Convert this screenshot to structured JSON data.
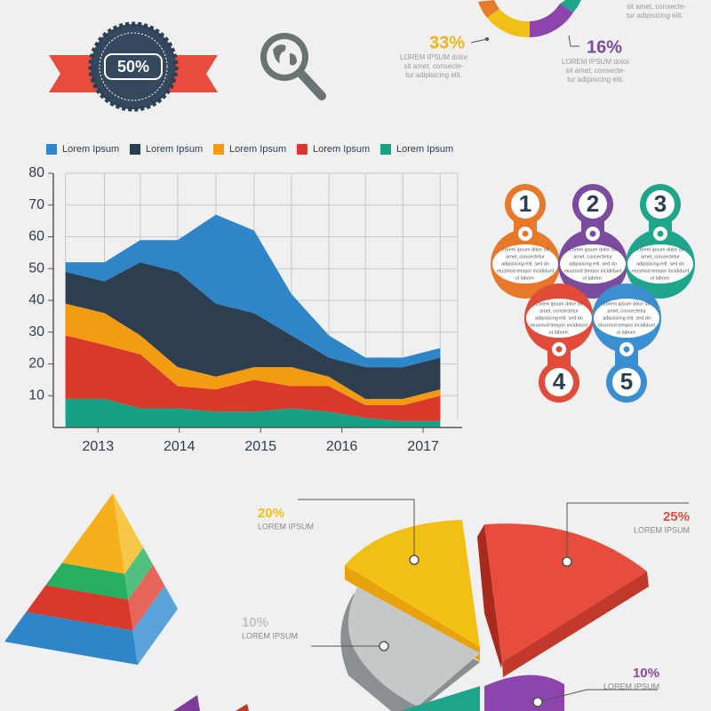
{
  "badge": {
    "label": "50%"
  },
  "donut": {
    "top_right": [
      "sit amet, consecte-",
      "tur adipisicing elit."
    ],
    "callouts": [
      {
        "value": "33%",
        "color": "#f2b41b",
        "lines": [
          "LOREM IPSUM dolor",
          "sit amet, consecte-",
          "tur adipisicing elit."
        ]
      },
      {
        "value": "16%",
        "color": "#7b4b9e",
        "lines": [
          "LOREM IPSUM dolor",
          "sit amet, consecte-",
          "tur adipisicing elit."
        ]
      }
    ]
  },
  "chart_data": {
    "type": "stacked-area",
    "x": [
      2012.6,
      2013.08,
      2013.52,
      2013.98,
      2014.45,
      2014.92,
      2015.38,
      2015.84,
      2016.29,
      2016.75,
      2017.21
    ],
    "xlim": [
      2012.45,
      2017.48
    ],
    "xticks": [
      2013,
      2014,
      2015,
      2016,
      2017
    ],
    "ylim": [
      0,
      80
    ],
    "yticks": [
      10,
      20,
      30,
      40,
      50,
      60,
      70,
      80
    ],
    "grid": true,
    "series": [
      {
        "name": "Lorem Ipsum",
        "color": "#2e86c9",
        "values": [
          3,
          6,
          7,
          10,
          28,
          26,
          13,
          7,
          3,
          3,
          3
        ]
      },
      {
        "name": "Lorem Ipsum",
        "color": "#2c3e50",
        "values": [
          10,
          10,
          23,
          30,
          23,
          17,
          10,
          6,
          10,
          10,
          10
        ]
      },
      {
        "name": "Lorem Ipsum",
        "color": "#f39c12",
        "values": [
          10,
          10,
          6,
          6,
          4,
          4,
          6,
          3,
          2,
          2,
          2
        ]
      },
      {
        "name": "Lorem Ipsum",
        "color": "#d8392b",
        "values": [
          20,
          17,
          17,
          7,
          7,
          10,
          7,
          8,
          4,
          5,
          8
        ]
      },
      {
        "name": "Lorem Ipsum",
        "color": "#16a085",
        "values": [
          9,
          9,
          6,
          6,
          5,
          5,
          6,
          5,
          3,
          2,
          2
        ]
      }
    ]
  },
  "steps": [
    {
      "number": "1",
      "color": "#e8792a",
      "lines": [
        "Lorem ipsum dolor sit",
        "amet, consectetur",
        "adipisicing elit. sed do",
        "eiusmod tempor incididunt",
        "ut labore."
      ]
    },
    {
      "number": "2",
      "color": "#7b4b9e",
      "lines": [
        "Lorem ipsum dolor sit",
        "amet, consectetur",
        "adipisicing elit. sed do",
        "eiusmod tempor incididunt",
        "ut labore."
      ]
    },
    {
      "number": "3",
      "color": "#1fa58b",
      "lines": [
        "Lorem ipsum dolor sit",
        "amet, consectetur",
        "adipisicing elit. sed do",
        "eiusmod tempor incididunt",
        "ut labore."
      ]
    },
    {
      "number": "4",
      "color": "#e04b3a",
      "lines": [
        "Lorem ipsum dolor sit",
        "amet, consectetur",
        "adipisicing elit. sed do",
        "eiusmod tempor incididunt",
        "ut labore."
      ]
    },
    {
      "number": "5",
      "color": "#3b8fd0",
      "lines": [
        "Lorem ipsum dolor sit",
        "amet, consectetur",
        "adipisicing elit. sed do",
        "eiusmod tempor incididunt",
        "ut labore."
      ]
    }
  ],
  "pie": [
    {
      "value": "20%",
      "label": "LOREM IPSUM",
      "color": "#f2c014"
    },
    {
      "value": "25%",
      "label": "LOREM IPSUM",
      "color": "#e74c3c"
    },
    {
      "value": "10%",
      "label": "LOREM IPSUM",
      "color": "#bfc3c4"
    },
    {
      "value": "10%",
      "label": "LOREM IPSUM",
      "color": "#8e44ad"
    }
  ]
}
